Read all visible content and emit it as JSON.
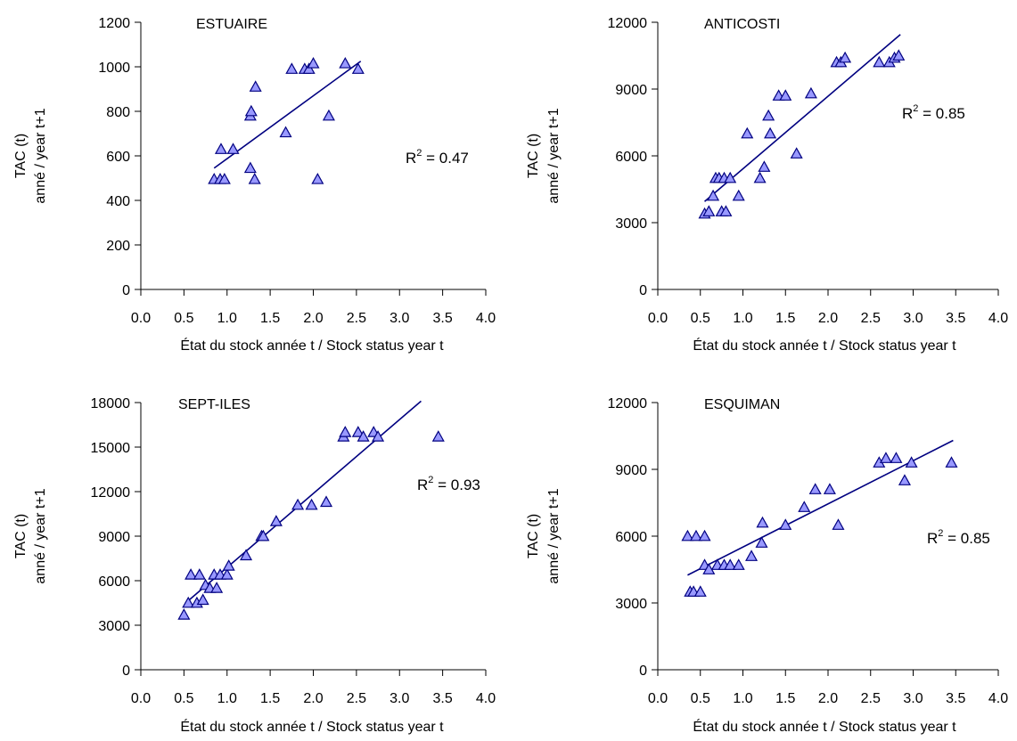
{
  "chart_data": [
    {
      "type": "scatter",
      "title": "ESTUAIRE",
      "xlabel": "État du stock année t  / Stock status year t",
      "ylabel": [
        "TAC (t)",
        "anné / year t+1"
      ],
      "xlim": [
        0,
        4
      ],
      "ylim": [
        0,
        1200
      ],
      "xticks": [
        0,
        0.5,
        1,
        1.5,
        2,
        2.5,
        3,
        3.5,
        4
      ],
      "yticks": [
        0,
        200,
        400,
        600,
        800,
        1000,
        1200
      ],
      "xtick_labels": [
        "0.0",
        "0.5",
        "1.0",
        "1.5",
        "2.0",
        "2.5",
        "3.0",
        "3.5",
        "4.0"
      ],
      "ytick_labels": [
        "0",
        "200",
        "400",
        "600",
        "800",
        "1000",
        "1200"
      ],
      "r2_label": "R",
      "r2_sup": "2",
      "r2_value": " = 0.47",
      "trendline": {
        "x": [
          0.85,
          2.55
        ],
        "y": [
          545,
          1025
        ]
      },
      "points": {
        "x": [
          0.85,
          0.92,
          0.97,
          0.93,
          1.07,
          1.27,
          1.27,
          1.28,
          1.32,
          1.33,
          1.68,
          1.75,
          1.9,
          1.95,
          2.0,
          2.05,
          2.18,
          2.37,
          2.52
        ],
        "y": [
          495,
          495,
          495,
          630,
          630,
          545,
          780,
          800,
          495,
          910,
          705,
          990,
          990,
          990,
          1015,
          495,
          780,
          1015,
          990
        ]
      }
    },
    {
      "type": "scatter",
      "title": "ANTICOSTI",
      "xlabel": "État du stock année t  / Stock status year t",
      "ylabel": [
        "TAC (t)",
        "anné / year t+1"
      ],
      "xlim": [
        0,
        4
      ],
      "ylim": [
        0,
        12000
      ],
      "xticks": [
        0,
        0.5,
        1,
        1.5,
        2,
        2.5,
        3,
        3.5,
        4
      ],
      "yticks": [
        0,
        3000,
        6000,
        9000,
        12000
      ],
      "xtick_labels": [
        "0.0",
        "0.5",
        "1.0",
        "1.5",
        "2.0",
        "2.5",
        "3.0",
        "3.5",
        "4.0"
      ],
      "ytick_labels": [
        "0",
        "3000",
        "6000",
        "9000",
        "12000"
      ],
      "r2_label": "R",
      "r2_sup": "2",
      "r2_value": " = 0.85",
      "trendline": {
        "x": [
          0.55,
          2.85
        ],
        "y": [
          3950,
          11450
        ]
      },
      "points": {
        "x": [
          0.55,
          0.6,
          0.65,
          0.68,
          0.72,
          0.75,
          0.78,
          0.8,
          0.85,
          0.95,
          1.05,
          1.2,
          1.25,
          1.3,
          1.32,
          1.42,
          1.5,
          1.63,
          1.8,
          2.1,
          2.15,
          2.2,
          2.6,
          2.72,
          2.78,
          2.83
        ],
        "y": [
          3400,
          3500,
          4200,
          5000,
          5000,
          3500,
          5000,
          3500,
          5000,
          4200,
          7000,
          5000,
          5500,
          7800,
          7000,
          8700,
          8700,
          6100,
          8800,
          10200,
          10200,
          10400,
          10200,
          10200,
          10400,
          10500
        ]
      }
    },
    {
      "type": "scatter",
      "title": "SEPT-ILES",
      "xlabel": "État du stock année t  / Stock status year t",
      "ylabel": [
        "TAC (t)",
        "anné / year t+1"
      ],
      "xlim": [
        0,
        4
      ],
      "ylim": [
        0,
        18000
      ],
      "xticks": [
        0,
        0.5,
        1,
        1.5,
        2,
        2.5,
        3,
        3.5,
        4
      ],
      "yticks": [
        0,
        3000,
        6000,
        9000,
        12000,
        15000,
        18000
      ],
      "xtick_labels": [
        "0.0",
        "0.5",
        "1.0",
        "1.5",
        "2.0",
        "2.5",
        "3.0",
        "3.5",
        "4.0"
      ],
      "ytick_labels": [
        "0",
        "3000",
        "6000",
        "9000",
        "12000",
        "15000",
        "18000"
      ],
      "r2_label": "R",
      "r2_sup": "2",
      "r2_value": " = 0.93",
      "trendline": {
        "x": [
          0.52,
          3.25
        ],
        "y": [
          4500,
          18100
        ]
      },
      "points": {
        "x": [
          0.5,
          0.55,
          0.58,
          0.65,
          0.68,
          0.72,
          0.75,
          0.8,
          0.85,
          0.88,
          0.92,
          1.0,
          1.02,
          1.22,
          1.4,
          1.42,
          1.57,
          1.82,
          1.98,
          2.15,
          2.35,
          2.37,
          2.52,
          2.58,
          2.7,
          2.75,
          3.45
        ],
        "y": [
          3700,
          4500,
          6400,
          4500,
          6400,
          4700,
          5700,
          5500,
          6400,
          5500,
          6400,
          6400,
          7000,
          7700,
          9000,
          9000,
          10000,
          11100,
          11100,
          11300,
          15700,
          16000,
          16000,
          15700,
          16000,
          15700,
          15700
        ]
      }
    },
    {
      "type": "scatter",
      "title": "ESQUIMAN",
      "xlabel": "État du stock année t  / Stock status year t",
      "ylabel": [
        "TAC (t)",
        "anné / year t+1"
      ],
      "xlim": [
        0,
        4
      ],
      "ylim": [
        0,
        12000
      ],
      "xticks": [
        0,
        0.5,
        1,
        1.5,
        2,
        2.5,
        3,
        3.5,
        4
      ],
      "yticks": [
        0,
        3000,
        6000,
        9000,
        12000
      ],
      "xtick_labels": [
        "0.0",
        "0.5",
        "1.0",
        "1.5",
        "2.0",
        "2.5",
        "3.0",
        "3.5",
        "4.0"
      ],
      "ytick_labels": [
        "0",
        "3000",
        "6000",
        "9000",
        "12000"
      ],
      "r2_label": "R",
      "r2_sup": "2",
      "r2_value": " = 0.85",
      "trendline": {
        "x": [
          0.35,
          3.47
        ],
        "y": [
          4250,
          10300
        ]
      },
      "points": {
        "x": [
          0.35,
          0.38,
          0.42,
          0.45,
          0.5,
          0.55,
          0.55,
          0.6,
          0.7,
          0.78,
          0.85,
          0.95,
          1.1,
          1.22,
          1.23,
          1.5,
          1.72,
          1.85,
          2.02,
          2.12,
          2.6,
          2.68,
          2.8,
          2.9,
          2.98,
          3.45
        ],
        "y": [
          6000,
          3500,
          3500,
          6000,
          3500,
          6000,
          4700,
          4500,
          4700,
          4700,
          4700,
          4700,
          5100,
          5700,
          6600,
          6500,
          7300,
          8100,
          8100,
          6500,
          9300,
          9500,
          9500,
          8500,
          9300,
          9300
        ]
      }
    }
  ]
}
